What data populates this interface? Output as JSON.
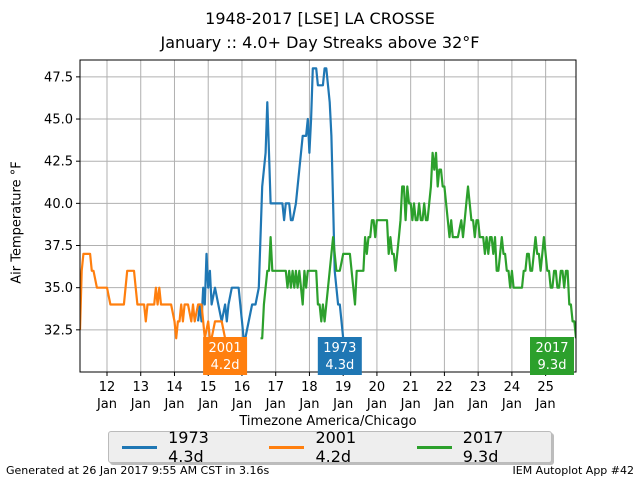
{
  "title": "1948-2017 [LSE] LA CROSSE",
  "subtitle": "January :: 4.0+ Day Streaks above 32°F",
  "footer_left": "Generated at 26 Jan 2017 9:55 AM CST in 3.16s",
  "footer_right": "IEM Autoplot App #42",
  "chart_data": {
    "type": "line",
    "xlabel": "Timezone America/Chicago",
    "ylabel": "Air Temperature °F",
    "ylim": [
      30.0,
      48.5
    ],
    "xlim": [
      11.2,
      25.9
    ],
    "yticks": [
      32.5,
      35.0,
      37.5,
      40.0,
      42.5,
      45.0,
      47.5
    ],
    "ytick_labels": [
      "32.5",
      "35.0",
      "37.5",
      "40.0",
      "42.5",
      "45.0",
      "47.5"
    ],
    "xticks": [
      12,
      13,
      14,
      15,
      16,
      17,
      18,
      19,
      20,
      21,
      22,
      23,
      24,
      25
    ],
    "xtick_labels": [
      "12\nJan",
      "13\nJan",
      "14\nJan",
      "15\nJan",
      "16\nJan",
      "17\nJan",
      "18\nJan",
      "19\nJan",
      "20\nJan",
      "21\nJan",
      "22\nJan",
      "23\nJan",
      "24\nJan",
      "25\nJan"
    ],
    "grid": true,
    "legend_position": "bottom-center",
    "series": [
      {
        "name": "1973 4.3d",
        "color": "#1f77b4",
        "annotation": "1973\n4.3d",
        "points": [
          [
            14.7,
            33
          ],
          [
            14.75,
            34
          ],
          [
            14.8,
            33
          ],
          [
            14.85,
            35
          ],
          [
            14.9,
            34
          ],
          [
            14.95,
            37
          ],
          [
            15.0,
            35
          ],
          [
            15.05,
            36
          ],
          [
            15.1,
            34
          ],
          [
            15.2,
            35
          ],
          [
            15.3,
            34
          ],
          [
            15.4,
            33
          ],
          [
            15.5,
            34
          ],
          [
            15.55,
            33
          ],
          [
            15.6,
            34
          ],
          [
            15.7,
            35
          ],
          [
            15.8,
            35
          ],
          [
            15.9,
            35
          ],
          [
            15.95,
            34
          ],
          [
            16.0,
            33
          ],
          [
            16.05,
            32
          ],
          [
            16.1,
            32
          ],
          [
            16.2,
            33
          ],
          [
            16.3,
            34
          ],
          [
            16.4,
            34
          ],
          [
            16.5,
            35
          ],
          [
            16.6,
            41
          ],
          [
            16.7,
            43
          ],
          [
            16.75,
            46
          ],
          [
            16.8,
            43
          ],
          [
            16.85,
            40
          ],
          [
            16.9,
            40
          ],
          [
            17.0,
            40
          ],
          [
            17.1,
            40
          ],
          [
            17.2,
            40
          ],
          [
            17.25,
            39
          ],
          [
            17.3,
            40
          ],
          [
            17.4,
            40
          ],
          [
            17.45,
            39
          ],
          [
            17.5,
            39
          ],
          [
            17.6,
            40
          ],
          [
            17.7,
            42
          ],
          [
            17.75,
            43
          ],
          [
            17.8,
            44
          ],
          [
            17.9,
            44
          ],
          [
            17.95,
            45
          ],
          [
            18.0,
            43
          ],
          [
            18.05,
            45
          ],
          [
            18.1,
            48
          ],
          [
            18.2,
            48
          ],
          [
            18.25,
            47
          ],
          [
            18.3,
            47
          ],
          [
            18.4,
            47
          ],
          [
            18.45,
            48
          ],
          [
            18.5,
            48
          ],
          [
            18.55,
            47
          ],
          [
            18.6,
            46
          ],
          [
            18.65,
            44
          ],
          [
            18.7,
            40
          ],
          [
            18.75,
            36
          ],
          [
            18.8,
            35
          ],
          [
            18.85,
            34
          ],
          [
            18.9,
            34
          ],
          [
            18.95,
            33
          ],
          [
            19.0,
            32
          ]
        ]
      },
      {
        "name": "2001 4.2d",
        "color": "#ff7f0e",
        "annotation": "2001\n4.2d",
        "points": [
          [
            11.2,
            32.5
          ],
          [
            11.25,
            36
          ],
          [
            11.3,
            37
          ],
          [
            11.5,
            37
          ],
          [
            11.55,
            36
          ],
          [
            11.6,
            36
          ],
          [
            11.7,
            35
          ],
          [
            11.9,
            35
          ],
          [
            12.0,
            35
          ],
          [
            12.1,
            34
          ],
          [
            12.2,
            34
          ],
          [
            12.3,
            34
          ],
          [
            12.4,
            34
          ],
          [
            12.5,
            34
          ],
          [
            12.6,
            36
          ],
          [
            12.7,
            36
          ],
          [
            12.8,
            36
          ],
          [
            12.9,
            34
          ],
          [
            13.0,
            34
          ],
          [
            13.1,
            34
          ],
          [
            13.15,
            33
          ],
          [
            13.2,
            34
          ],
          [
            13.3,
            34
          ],
          [
            13.4,
            34
          ],
          [
            13.45,
            35
          ],
          [
            13.5,
            34
          ],
          [
            13.55,
            35
          ],
          [
            13.6,
            34
          ],
          [
            13.7,
            34
          ],
          [
            13.8,
            34
          ],
          [
            13.9,
            34
          ],
          [
            14.0,
            33
          ],
          [
            14.05,
            32
          ],
          [
            14.1,
            33
          ],
          [
            14.15,
            33
          ],
          [
            14.2,
            34
          ],
          [
            14.25,
            33
          ],
          [
            14.3,
            34
          ],
          [
            14.4,
            34
          ],
          [
            14.5,
            33
          ],
          [
            14.55,
            34
          ],
          [
            14.6,
            33
          ],
          [
            14.7,
            34
          ],
          [
            14.8,
            34
          ],
          [
            14.85,
            33
          ],
          [
            14.9,
            32
          ],
          [
            15.0,
            33
          ],
          [
            15.05,
            32
          ],
          [
            15.1,
            32
          ],
          [
            15.2,
            33
          ],
          [
            15.3,
            33
          ],
          [
            15.4,
            33
          ],
          [
            15.5,
            32
          ]
        ]
      },
      {
        "name": "2017 9.3d",
        "color": "#2ca02c",
        "annotation": "2017\n9.3d",
        "points": [
          [
            16.55,
            32
          ],
          [
            16.6,
            32
          ],
          [
            16.65,
            34
          ],
          [
            16.7,
            35
          ],
          [
            16.75,
            36
          ],
          [
            16.8,
            36
          ],
          [
            16.85,
            38
          ],
          [
            16.9,
            36
          ],
          [
            17.0,
            36
          ],
          [
            17.1,
            36
          ],
          [
            17.2,
            36
          ],
          [
            17.3,
            36
          ],
          [
            17.35,
            35
          ],
          [
            17.4,
            36
          ],
          [
            17.45,
            35
          ],
          [
            17.5,
            36
          ],
          [
            17.55,
            35
          ],
          [
            17.6,
            36
          ],
          [
            17.65,
            35
          ],
          [
            17.7,
            36
          ],
          [
            17.8,
            34
          ],
          [
            17.85,
            36
          ],
          [
            17.9,
            35
          ],
          [
            17.95,
            36
          ],
          [
            18.0,
            36
          ],
          [
            18.1,
            36
          ],
          [
            18.2,
            36
          ],
          [
            18.25,
            34
          ],
          [
            18.3,
            34
          ],
          [
            18.35,
            33
          ],
          [
            18.4,
            34
          ],
          [
            18.45,
            33
          ],
          [
            18.5,
            34
          ],
          [
            18.55,
            35
          ],
          [
            18.6,
            36
          ],
          [
            18.65,
            37
          ],
          [
            18.7,
            38
          ],
          [
            18.75,
            37
          ],
          [
            18.8,
            36
          ],
          [
            18.9,
            36
          ],
          [
            19.0,
            37
          ],
          [
            19.1,
            37
          ],
          [
            19.2,
            37
          ],
          [
            19.3,
            35
          ],
          [
            19.35,
            34
          ],
          [
            19.4,
            36
          ],
          [
            19.5,
            36
          ],
          [
            19.6,
            36
          ],
          [
            19.65,
            38
          ],
          [
            19.7,
            37
          ],
          [
            19.75,
            38
          ],
          [
            19.8,
            38
          ],
          [
            19.85,
            39
          ],
          [
            19.9,
            39
          ],
          [
            19.95,
            38
          ],
          [
            20.0,
            39
          ],
          [
            20.1,
            39
          ],
          [
            20.2,
            39
          ],
          [
            20.3,
            39
          ],
          [
            20.35,
            37
          ],
          [
            20.4,
            38
          ],
          [
            20.45,
            37
          ],
          [
            20.5,
            37
          ],
          [
            20.55,
            36
          ],
          [
            20.6,
            37
          ],
          [
            20.65,
            38
          ],
          [
            20.7,
            39
          ],
          [
            20.75,
            41
          ],
          [
            20.8,
            41
          ],
          [
            20.85,
            39
          ],
          [
            20.9,
            41
          ],
          [
            20.95,
            40
          ],
          [
            21.0,
            40
          ],
          [
            21.05,
            39
          ],
          [
            21.1,
            40
          ],
          [
            21.15,
            39
          ],
          [
            21.2,
            39
          ],
          [
            21.25,
            40
          ],
          [
            21.3,
            39
          ],
          [
            21.35,
            39
          ],
          [
            21.4,
            40
          ],
          [
            21.45,
            39
          ],
          [
            21.5,
            39
          ],
          [
            21.55,
            40
          ],
          [
            21.6,
            41
          ],
          [
            21.65,
            43
          ],
          [
            21.7,
            42
          ],
          [
            21.75,
            43
          ],
          [
            21.8,
            41
          ],
          [
            21.85,
            42
          ],
          [
            21.9,
            42
          ],
          [
            21.95,
            41
          ],
          [
            22.0,
            41
          ],
          [
            22.05,
            40
          ],
          [
            22.1,
            39
          ],
          [
            22.15,
            38
          ],
          [
            22.2,
            39
          ],
          [
            22.25,
            38
          ],
          [
            22.3,
            38
          ],
          [
            22.4,
            38
          ],
          [
            22.5,
            39
          ],
          [
            22.55,
            38
          ],
          [
            22.6,
            39
          ],
          [
            22.65,
            40
          ],
          [
            22.7,
            41
          ],
          [
            22.75,
            40
          ],
          [
            22.8,
            39
          ],
          [
            22.85,
            39
          ],
          [
            22.9,
            38
          ],
          [
            22.95,
            39
          ],
          [
            23.0,
            39
          ],
          [
            23.05,
            38
          ],
          [
            23.1,
            38
          ],
          [
            23.15,
            38
          ],
          [
            23.2,
            37
          ],
          [
            23.25,
            38
          ],
          [
            23.3,
            37
          ],
          [
            23.35,
            38
          ],
          [
            23.4,
            38
          ],
          [
            23.45,
            37
          ],
          [
            23.5,
            38
          ],
          [
            23.55,
            36
          ],
          [
            23.6,
            36
          ],
          [
            23.65,
            37
          ],
          [
            23.7,
            38
          ],
          [
            23.75,
            37
          ],
          [
            23.8,
            37
          ],
          [
            23.85,
            36
          ],
          [
            23.9,
            36
          ],
          [
            23.95,
            35
          ],
          [
            24.0,
            36
          ],
          [
            24.05,
            35
          ],
          [
            24.1,
            35
          ],
          [
            24.2,
            35
          ],
          [
            24.3,
            35
          ],
          [
            24.35,
            36
          ],
          [
            24.4,
            36
          ],
          [
            24.45,
            37
          ],
          [
            24.5,
            37
          ],
          [
            24.55,
            36
          ],
          [
            24.6,
            36
          ],
          [
            24.65,
            37
          ],
          [
            24.7,
            38
          ],
          [
            24.75,
            37
          ],
          [
            24.8,
            37
          ],
          [
            24.85,
            36
          ],
          [
            24.9,
            37
          ],
          [
            24.95,
            38
          ],
          [
            25.0,
            37
          ],
          [
            25.05,
            36
          ],
          [
            25.1,
            36
          ],
          [
            25.15,
            35
          ],
          [
            25.2,
            35
          ],
          [
            25.25,
            36
          ],
          [
            25.3,
            36
          ],
          [
            25.35,
            35
          ],
          [
            25.4,
            35
          ],
          [
            25.45,
            36
          ],
          [
            25.5,
            36
          ],
          [
            25.55,
            35
          ],
          [
            25.6,
            36
          ],
          [
            25.65,
            36
          ],
          [
            25.7,
            34
          ],
          [
            25.75,
            34
          ],
          [
            25.8,
            33
          ],
          [
            25.85,
            33
          ],
          [
            25.9,
            32
          ]
        ]
      }
    ]
  }
}
